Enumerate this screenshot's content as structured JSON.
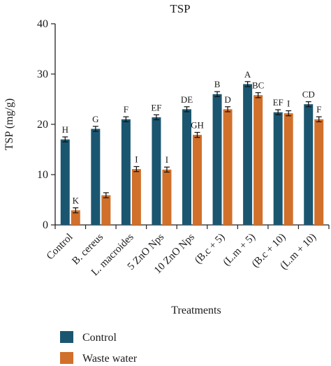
{
  "chart_data": {
    "type": "bar",
    "title": "TSP",
    "xlabel": "Treatments",
    "ylabel": "TSP (mg/g)",
    "ylim": [
      0,
      40
    ],
    "yticks": [
      0,
      10,
      20,
      30,
      40
    ],
    "grid": false,
    "legend_position": "bottom-left",
    "categories": [
      "Control",
      "B. cereus",
      "L. macroides",
      "5 ZnO Nps",
      "10 ZnO Nps",
      "(B.c + 5)",
      "(L.m + 5)",
      "(B.c + 10)",
      "(L.m + 10)"
    ],
    "series": [
      {
        "name": "Control",
        "color": "#1b5670",
        "values": [
          17,
          19.1,
          21,
          21.4,
          23,
          26,
          28,
          22.4,
          24
        ],
        "errors": [
          0.5,
          0.5,
          0.5,
          0.5,
          0.5,
          0.5,
          0.5,
          0.5,
          0.5
        ],
        "letters": [
          "H",
          "G",
          "F",
          "EF",
          "DE",
          "B",
          "A",
          "EF",
          "CD"
        ]
      },
      {
        "name": "Waste water",
        "color": "#d0702b",
        "values": [
          2.9,
          5.9,
          11.1,
          11,
          17.9,
          23,
          25.8,
          22.2,
          21
        ],
        "errors": [
          0.5,
          0.5,
          0.5,
          0.5,
          0.5,
          0.5,
          0.5,
          0.5,
          0.5
        ],
        "letters": [
          "K",
          "",
          "I",
          "I",
          "GH",
          "D",
          "BC",
          "I",
          "F"
        ]
      }
    ]
  }
}
